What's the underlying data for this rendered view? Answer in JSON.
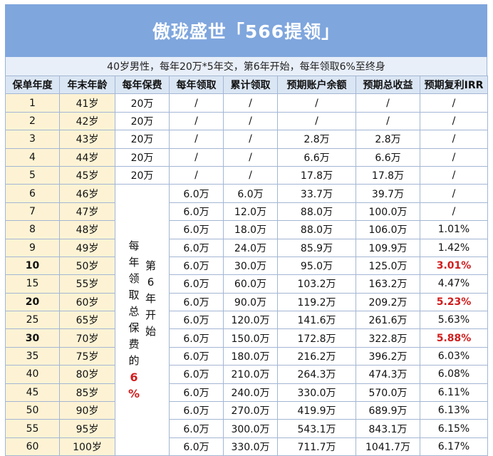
{
  "title": "傲珑盛世「566提领」",
  "subtitle": "40岁男性，每年20万*5年交，第6年开始，每年领取6%至终身",
  "headers": [
    "保单年度",
    "年末年龄",
    "每年保费",
    "每年领取",
    "累计领取",
    "预期账户余额",
    "预期总收益",
    "预期复利IRR"
  ],
  "merged_note_left": [
    "每",
    "年",
    "领",
    "取",
    "总",
    "保",
    "费",
    "的",
    "6",
    "%"
  ],
  "merged_note_right": [
    "第",
    "6",
    "年",
    "开",
    "始"
  ],
  "rows": [
    {
      "year": "1",
      "age": "41岁",
      "premium": "20万",
      "annual": "/",
      "cumulative": "/",
      "balance": "/",
      "total": "/",
      "irr": "/"
    },
    {
      "year": "2",
      "age": "42岁",
      "premium": "20万",
      "annual": "/",
      "cumulative": "/",
      "balance": "/",
      "total": "/",
      "irr": "/"
    },
    {
      "year": "3",
      "age": "43岁",
      "premium": "20万",
      "annual": "/",
      "cumulative": "/",
      "balance": "2.8万",
      "total": "2.8万",
      "irr": "/"
    },
    {
      "year": "4",
      "age": "44岁",
      "premium": "20万",
      "annual": "/",
      "cumulative": "/",
      "balance": "6.6万",
      "total": "6.6万",
      "irr": "/"
    },
    {
      "year": "5",
      "age": "45岁",
      "premium": "20万",
      "annual": "/",
      "cumulative": "/",
      "balance": "17.8万",
      "total": "17.8万",
      "irr": "/"
    },
    {
      "year": "6",
      "age": "46岁",
      "annual": "6.0万",
      "cumulative": "6.0万",
      "balance": "33.7万",
      "total": "39.7万",
      "irr": "/"
    },
    {
      "year": "7",
      "age": "47岁",
      "annual": "6.0万",
      "cumulative": "12.0万",
      "balance": "88.0万",
      "total": "100.0万",
      "irr": "/"
    },
    {
      "year": "8",
      "age": "48岁",
      "annual": "6.0万",
      "cumulative": "18.0万",
      "balance": "88.0万",
      "total": "106.0万",
      "irr": "1.01%"
    },
    {
      "year": "9",
      "age": "49岁",
      "annual": "6.0万",
      "cumulative": "24.0万",
      "balance": "85.9万",
      "total": "109.9万",
      "irr": "1.42%"
    },
    {
      "year": "10",
      "age": "50岁",
      "annual": "6.0万",
      "cumulative": "30.0万",
      "balance": "95.0万",
      "total": "125.0万",
      "irr": "3.01%",
      "bold": true,
      "red": true
    },
    {
      "year": "15",
      "age": "55岁",
      "annual": "6.0万",
      "cumulative": "60.0万",
      "balance": "103.2万",
      "total": "163.2万",
      "irr": "4.47%"
    },
    {
      "year": "20",
      "age": "60岁",
      "annual": "6.0万",
      "cumulative": "90.0万",
      "balance": "119.2万",
      "total": "209.2万",
      "irr": "5.23%",
      "bold": true,
      "red": true
    },
    {
      "year": "25",
      "age": "65岁",
      "annual": "6.0万",
      "cumulative": "120.0万",
      "balance": "141.6万",
      "total": "261.6万",
      "irr": "5.63%"
    },
    {
      "year": "30",
      "age": "70岁",
      "annual": "6.0万",
      "cumulative": "150.0万",
      "balance": "172.8万",
      "total": "322.8万",
      "irr": "5.88%",
      "bold": true,
      "red": true
    },
    {
      "year": "35",
      "age": "75岁",
      "annual": "6.0万",
      "cumulative": "180.0万",
      "balance": "216.2万",
      "total": "396.2万",
      "irr": "6.03%"
    },
    {
      "year": "40",
      "age": "80岁",
      "annual": "6.0万",
      "cumulative": "210.0万",
      "balance": "264.3万",
      "total": "474.3万",
      "irr": "6.08%"
    },
    {
      "year": "45",
      "age": "85岁",
      "annual": "6.0万",
      "cumulative": "240.0万",
      "balance": "330.0万",
      "total": "570.0万",
      "irr": "6.11%"
    },
    {
      "year": "50",
      "age": "90岁",
      "annual": "6.0万",
      "cumulative": "270.0万",
      "balance": "419.9万",
      "total": "689.9万",
      "irr": "6.13%"
    },
    {
      "year": "55",
      "age": "95岁",
      "annual": "6.0万",
      "cumulative": "300.0万",
      "balance": "543.1万",
      "total": "843.1万",
      "irr": "6.15%"
    },
    {
      "year": "60",
      "age": "100岁",
      "annual": "6.0万",
      "cumulative": "330.0万",
      "balance": "711.7万",
      "total": "1041.7万",
      "irr": "6.17%"
    }
  ]
}
